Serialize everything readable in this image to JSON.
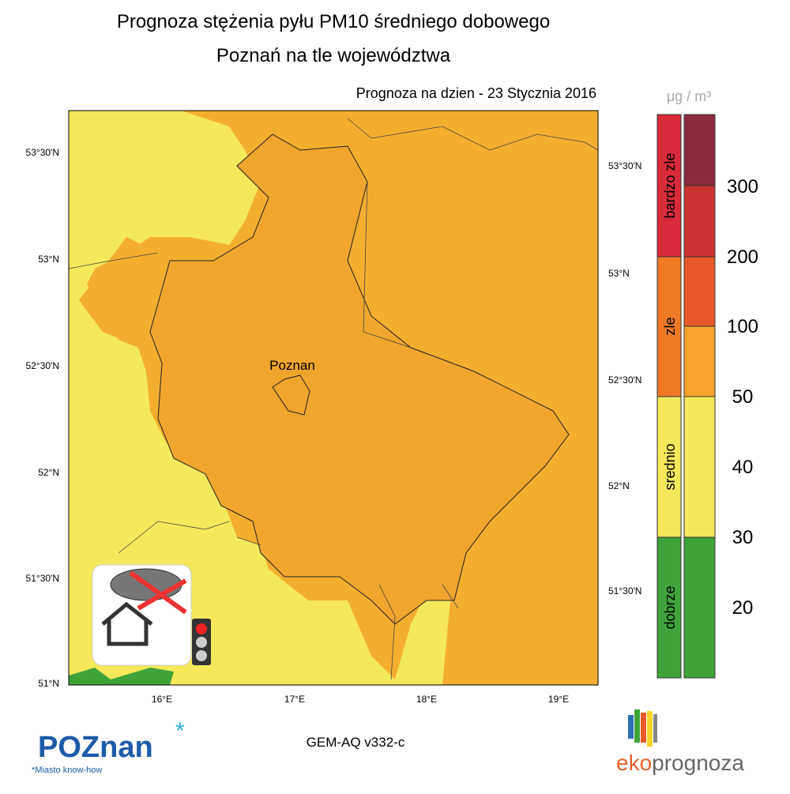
{
  "header": {
    "title": "Prognoza stężenia pyłu PM10 średniego dobowego",
    "subtitle": "Poznań na tle województwa",
    "date_label": "Prognoza na dzien -  23 Stycznia 2016"
  },
  "map": {
    "city_label": "Poznan",
    "lat_ticks_left": [
      "51°N",
      "51°30'N",
      "52°N",
      "52°30'N",
      "53°N",
      "53°30'N"
    ],
    "lat_ticks_right": [
      "51°30'N",
      "52°N",
      "52°30'N",
      "53°N",
      "53°30'N"
    ],
    "lon_ticks": [
      "16°E",
      "17°E",
      "18°E",
      "19°E"
    ]
  },
  "legend": {
    "unit": "μg / m³",
    "categories": [
      "bardzo zle",
      "zle",
      "srednio",
      "dobrze"
    ],
    "levels": [
      300,
      200,
      100,
      50,
      40,
      30,
      20
    ]
  },
  "footer": {
    "logo_left": "POZnan",
    "tagline": "*Miasto know-how",
    "model": "GEM-AQ v332-c",
    "logo_right_a": "eko",
    "logo_right_b": "prognoza"
  }
}
